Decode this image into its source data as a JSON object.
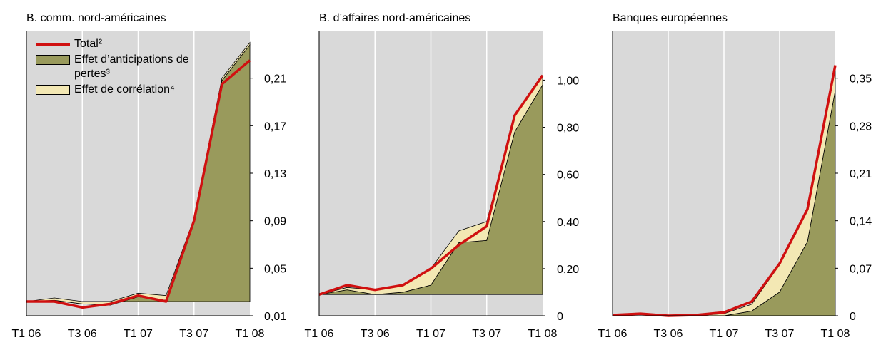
{
  "chart_data": [
    {
      "type": "area",
      "title": "B. comm. nord-américaines",
      "categories": [
        "T1 06",
        null,
        "T3 06",
        null,
        "T1 07",
        null,
        "T3 07",
        null,
        "T1 08"
      ],
      "baseline": 0.022,
      "series": [
        {
          "name": "Effet d’anticipations de pertes³",
          "kind": "area",
          "color": "#999a5c",
          "values": [
            0.022,
            0.023,
            0.02,
            0.019,
            0.026,
            0.023,
            0.092,
            0.208,
            0.238
          ]
        },
        {
          "name": "Effet de corrélation⁴",
          "kind": "stack",
          "color": "#f3e8b4",
          "values": [
            0,
            0.002,
            0.002,
            0.003,
            0.003,
            0.004,
            0,
            0.002,
            0.002
          ]
        },
        {
          "name": "Total²",
          "kind": "line",
          "color": "#d01010",
          "values": [
            0.022,
            0.022,
            0.017,
            0.02,
            0.027,
            0.022,
            0.09,
            0.205,
            0.225
          ]
        }
      ],
      "ylim": [
        0.01,
        0.25
      ],
      "yticks": [
        {
          "value": 0.01,
          "label": "0,01"
        },
        {
          "value": 0.05,
          "label": "0,05"
        },
        {
          "value": 0.09,
          "label": "0,09"
        },
        {
          "value": 0.13,
          "label": "0,13"
        },
        {
          "value": 0.17,
          "label": "0,17"
        },
        {
          "value": 0.21,
          "label": "0,21"
        }
      ],
      "legend": "upper left"
    },
    {
      "type": "area",
      "title": "B. d’affaires nord-américaines",
      "categories": [
        "T1 06",
        null,
        "T3 06",
        null,
        "T1 07",
        null,
        "T3 07",
        null,
        "T1 08"
      ],
      "baseline": 0.09,
      "series": [
        {
          "name": "Effet d’anticipations de pertes³",
          "kind": "area",
          "color": "#999a5c",
          "values": [
            0.09,
            0.11,
            0.09,
            0.1,
            0.13,
            0.31,
            0.32,
            0.78,
            0.98
          ]
        },
        {
          "name": "Effet de corrélation⁴",
          "kind": "stack",
          "color": "#f3e8b4",
          "values": [
            0,
            0.01,
            0.02,
            0.03,
            0.07,
            0.05,
            0.08,
            0.07,
            0.04
          ]
        },
        {
          "name": "Total²",
          "kind": "line",
          "color": "#d01010",
          "values": [
            0.09,
            0.13,
            0.11,
            0.13,
            0.2,
            0.3,
            0.38,
            0.85,
            1.02
          ]
        }
      ],
      "ylim": [
        0,
        1.21
      ],
      "yticks": [
        0,
        {
          "value": 0.2,
          "label": "0,20"
        },
        {
          "value": 0.4,
          "label": "0,40"
        },
        {
          "value": 0.6,
          "label": "0,60"
        },
        {
          "value": 0.8,
          "label": "0,80"
        },
        {
          "value": 1.0,
          "label": "1,00"
        }
      ]
    },
    {
      "type": "area",
      "title": "Banques européennes",
      "categories": [
        "T1 06",
        null,
        "T3 06",
        null,
        "T1 07",
        null,
        "T3 07",
        null,
        "T1 08"
      ],
      "baseline": 0,
      "series": [
        {
          "name": "Effet d’anticipations de pertes³",
          "kind": "area",
          "color": "#999a5c",
          "values": [
            0,
            0,
            0,
            0,
            0,
            0.007,
            0.035,
            0.109,
            0.332
          ]
        },
        {
          "name": "Effet de corrélation⁴",
          "kind": "stack",
          "color": "#f3e8b4",
          "values": [
            0,
            0,
            0,
            0,
            0.003,
            0.01,
            0.04,
            0.05,
            0.03
          ]
        },
        {
          "name": "Total²",
          "kind": "line",
          "color": "#d01010",
          "values": [
            0.001,
            0.003,
            0,
            0.001,
            0.005,
            0.021,
            0.077,
            0.157,
            0.369
          ]
        }
      ],
      "ylim": [
        0,
        0.42
      ],
      "yticks": [
        0,
        {
          "value": 0.07,
          "label": "0,07"
        },
        {
          "value": 0.14,
          "label": "0,14"
        },
        {
          "value": 0.21,
          "label": "0,21"
        },
        {
          "value": 0.28,
          "label": "0,28"
        },
        {
          "value": 0.35,
          "label": "0,35"
        }
      ]
    }
  ]
}
